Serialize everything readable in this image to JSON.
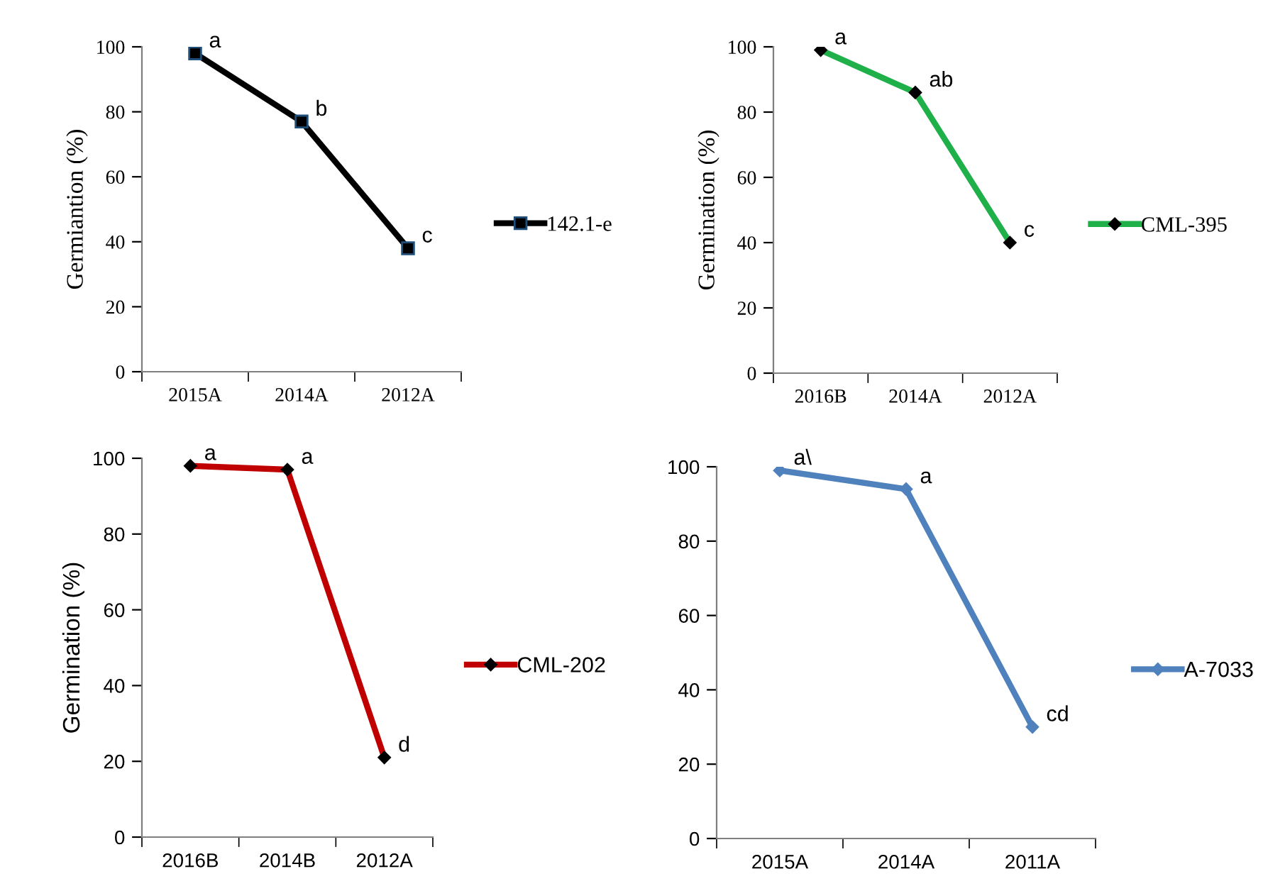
{
  "chart_data": [
    {
      "type": "line",
      "ylabel": "Germiantion (%)",
      "categories": [
        "2015A",
        "2014A",
        "2012A"
      ],
      "series": [
        {
          "name": "142.1-e",
          "color": "#000000",
          "values": [
            98,
            77,
            38
          ]
        }
      ],
      "marker": "square",
      "ylim": [
        0,
        100
      ],
      "yticks": [
        0,
        20,
        40,
        60,
        80,
        100
      ],
      "legend": "right",
      "annotations": [
        {
          "text": "a",
          "x": "2015A",
          "y": 98
        },
        {
          "text": "b",
          "x": "2014A",
          "y": 77
        },
        {
          "text": "c",
          "x": "2012A",
          "y": 38
        }
      ]
    },
    {
      "type": "line",
      "ylabel": "Germination (%)",
      "categories": [
        "2016B",
        "2014A",
        "2012A"
      ],
      "series": [
        {
          "name": "CML-395",
          "color": "#1fb04a",
          "values": [
            99,
            86,
            40
          ]
        }
      ],
      "marker": "diamond",
      "ylim": [
        0,
        100
      ],
      "yticks": [
        0,
        20,
        40,
        60,
        80,
        100
      ],
      "legend": "right",
      "annotations": [
        {
          "text": "a",
          "x": "2016B",
          "y": 99
        },
        {
          "text": "ab",
          "x": "2014A",
          "y": 86
        },
        {
          "text": "c",
          "x": "2012A",
          "y": 40
        }
      ]
    },
    {
      "type": "line",
      "ylabel": "Germination (%)",
      "categories": [
        "2016B",
        "2014B",
        "2012A"
      ],
      "series": [
        {
          "name": "CML-202",
          "color": "#c00000",
          "values": [
            98,
            97,
            21
          ]
        }
      ],
      "marker": "diamond",
      "ylim": [
        0,
        100
      ],
      "yticks": [
        0,
        20,
        40,
        60,
        80,
        100
      ],
      "legend": "right",
      "annotations": [
        {
          "text": "a",
          "x": "2016B",
          "y": 98
        },
        {
          "text": "a",
          "x": "2014B",
          "y": 97
        },
        {
          "text": "d",
          "x": "2012A",
          "y": 21
        }
      ]
    },
    {
      "type": "line",
      "categories": [
        "2015A",
        "2014A",
        "2011A"
      ],
      "series": [
        {
          "name": "A-7033",
          "color": "#4f81bd",
          "values": [
            99,
            94,
            30
          ]
        }
      ],
      "marker": "diamond",
      "ylim": [
        0,
        100
      ],
      "yticks": [
        0,
        20,
        40,
        60,
        80,
        100
      ],
      "legend": "right",
      "annotations": [
        {
          "text": "a\\",
          "x": "2015A",
          "y": 99
        },
        {
          "text": "a",
          "x": "2014A",
          "y": 94
        },
        {
          "text": "cd",
          "x": "2011A",
          "y": 30
        }
      ]
    }
  ]
}
